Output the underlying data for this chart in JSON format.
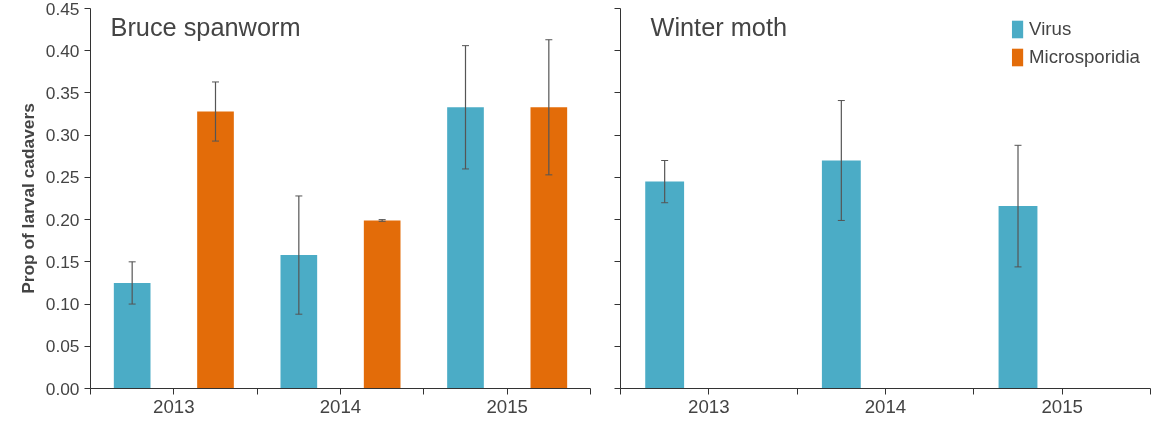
{
  "chart_data": [
    {
      "type": "bar",
      "title": "Bruce spanworm",
      "ylabel": "Prop of larval cadavers",
      "categories": [
        "2013",
        "2014",
        "2015"
      ],
      "series": [
        {
          "color": "#4bacc6",
          "values": [
            0.125,
            0.158,
            0.333
          ],
          "errors": [
            0.025,
            0.07,
            0.073
          ]
        },
        {
          "color": "#e36c09",
          "values": [
            0.328,
            0.199,
            0.333
          ],
          "errors": [
            0.035,
            0.001,
            0.08
          ]
        }
      ],
      "ylim": [
        0,
        0.45
      ],
      "yticks": [
        {
          "value": 0,
          "label": "0.00"
        },
        0.05,
        {
          "value": 0.1,
          "label": "0.10"
        },
        0.15,
        {
          "value": 0.2,
          "label": "0.20"
        },
        0.25,
        {
          "value": 0.3,
          "label": "0.30"
        },
        0.35,
        {
          "value": 0.4,
          "label": "0.40"
        },
        0.45
      ],
      "grid": false
    },
    {
      "type": "bar",
      "title": "Winter moth",
      "categories": [
        "2013",
        "2014",
        "2015"
      ],
      "series": [
        {
          "name": "Virus",
          "color": "#4bacc6",
          "values": [
            0.245,
            0.27,
            0.216
          ],
          "errors": [
            0.025,
            0.071,
            0.072
          ]
        },
        {
          "name": "Microsporidia",
          "color": "#e36c09",
          "values": [
            null,
            null,
            null
          ]
        }
      ],
      "ylim": [
        0,
        0.45
      ],
      "yticks": [
        0,
        0.05,
        0.1,
        0.15,
        0.2,
        0.25,
        0.3,
        0.35,
        0.4,
        0.45
      ],
      "tick_labels": "x",
      "grid": false,
      "legend": "top right"
    }
  ]
}
